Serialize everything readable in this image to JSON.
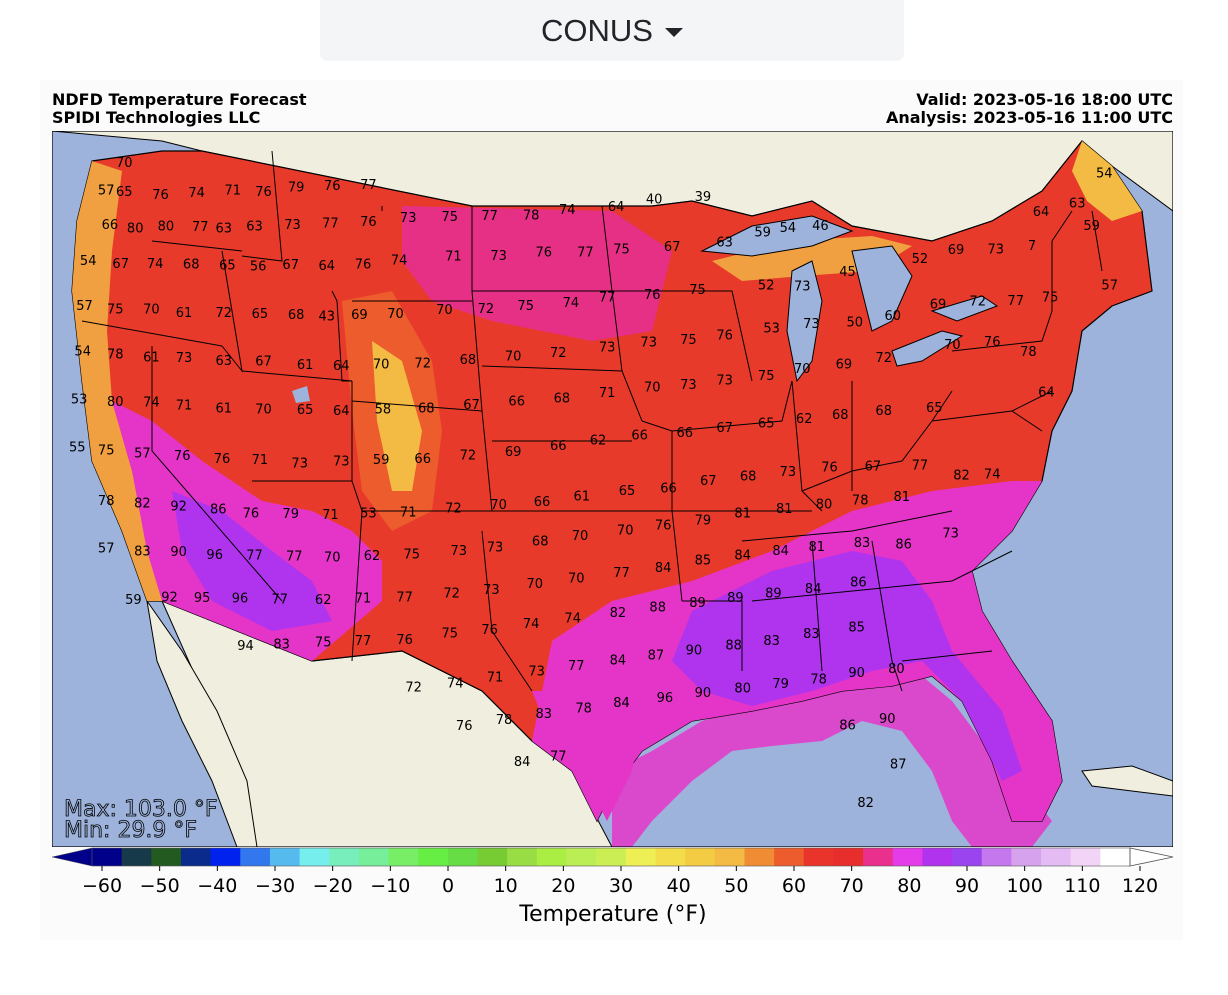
{
  "selector": {
    "value": "CONUS"
  },
  "header": {
    "title": "NDFD Temperature Forecast",
    "company": "SPIDI Technologies LLC",
    "valid": "Valid: 2023-05-16 18:00 UTC",
    "analysis": "Analysis: 2023-05-16 11:00 UTC"
  },
  "stats": {
    "max": "Max: 103.0 °F",
    "min": "Min: 29.9 °F"
  },
  "colorbar": {
    "label": "Temperature (°F)",
    "ticks": [
      -60,
      -50,
      -40,
      -30,
      -20,
      -10,
      0,
      10,
      20,
      30,
      40,
      50,
      60,
      70,
      80,
      90,
      100,
      110,
      120
    ],
    "colors": [
      "#00008b",
      "#173a4a",
      "#225a20",
      "#0a2a8c",
      "#0022ee",
      "#3377ee",
      "#55bbee",
      "#77eeee",
      "#77eebb",
      "#77ee99",
      "#77ee66",
      "#66ee44",
      "#66dd44",
      "#77cc33",
      "#99dd44",
      "#aaee44",
      "#bbee55",
      "#ccee55",
      "#eeee55",
      "#f4dd4a",
      "#f4cc44",
      "#f4bb44",
      "#f08c33",
      "#ec5c2c",
      "#e8342a",
      "#e82d2d",
      "#e8308c",
      "#e33ce8",
      "#b133ee",
      "#9944ee",
      "#c577ee",
      "#d6a2ee",
      "#e4bbf2",
      "#f2d5f6",
      "#ffffff"
    ]
  },
  "colors": {
    "ocean": "#9db3db",
    "land": "#efeedf",
    "lake": "#9db3db",
    "warm": "#e83a2a",
    "hot": "#e535c8",
    "veryhot": "#b033ee",
    "mild": "#f0a040",
    "cool": "#f6c040"
  },
  "station_values": [
    {
      "t": "70",
      "lon": -123.0,
      "lat": 48.9
    },
    {
      "t": "57",
      "lon": -124.0,
      "lat": 47.9
    },
    {
      "t": "65",
      "lon": -123.0,
      "lat": 47.8
    },
    {
      "t": "76",
      "lon": -121.0,
      "lat": 47.6
    },
    {
      "t": "74",
      "lon": -119.0,
      "lat": 47.6
    },
    {
      "t": "71",
      "lon": -117.0,
      "lat": 47.6
    },
    {
      "t": "76",
      "lon": -115.3,
      "lat": 47.5
    },
    {
      "t": "79",
      "lon": -113.5,
      "lat": 47.6
    },
    {
      "t": "76",
      "lon": -111.5,
      "lat": 47.6
    },
    {
      "t": "77",
      "lon": -109.5,
      "lat": 47.6
    },
    {
      "t": "66",
      "lon": -123.8,
      "lat": 46.6
    },
    {
      "t": "80",
      "lon": -122.4,
      "lat": 46.4
    },
    {
      "t": "80",
      "lon": -120.7,
      "lat": 46.4
    },
    {
      "t": "77",
      "lon": -118.8,
      "lat": 46.3
    },
    {
      "t": "63",
      "lon": -117.5,
      "lat": 46.2
    },
    {
      "t": "63",
      "lon": -115.8,
      "lat": 46.2
    },
    {
      "t": "73",
      "lon": -113.7,
      "lat": 46.2
    },
    {
      "t": "77",
      "lon": -111.6,
      "lat": 46.2
    },
    {
      "t": "76",
      "lon": -109.5,
      "lat": 46.2
    },
    {
      "t": "73",
      "lon": -107.3,
      "lat": 46.3
    },
    {
      "t": "75",
      "lon": -105.0,
      "lat": 46.3
    },
    {
      "t": "77",
      "lon": -102.8,
      "lat": 46.3
    },
    {
      "t": "78",
      "lon": -100.5,
      "lat": 46.3
    },
    {
      "t": "74",
      "lon": -98.5,
      "lat": 46.5
    },
    {
      "t": "64",
      "lon": -95.8,
      "lat": 46.6
    },
    {
      "t": "40",
      "lon": -93.7,
      "lat": 46.9
    },
    {
      "t": "39",
      "lon": -91.0,
      "lat": 47.0
    },
    {
      "t": "59",
      "lon": -69.5,
      "lat": 46.5
    },
    {
      "t": "54",
      "lon": -68.8,
      "lat": 48.5
    },
    {
      "t": "64",
      "lon": -72.3,
      "lat": 46.9
    },
    {
      "t": "63",
      "lon": -70.3,
      "lat": 47.3
    },
    {
      "t": "54",
      "lon": -125.0,
      "lat": 45.3
    },
    {
      "t": "67",
      "lon": -123.2,
      "lat": 45.1
    },
    {
      "t": "74",
      "lon": -121.3,
      "lat": 45.0
    },
    {
      "t": "68",
      "lon": -119.3,
      "lat": 44.9
    },
    {
      "t": "65",
      "lon": -117.3,
      "lat": 44.8
    },
    {
      "t": "56",
      "lon": -115.6,
      "lat": 44.7
    },
    {
      "t": "67",
      "lon": -113.8,
      "lat": 44.7
    },
    {
      "t": "64",
      "lon": -111.8,
      "lat": 44.6
    },
    {
      "t": "76",
      "lon": -109.8,
      "lat": 44.6
    },
    {
      "t": "74",
      "lon": -107.8,
      "lat": 44.7
    },
    {
      "t": "71",
      "lon": -104.8,
      "lat": 44.8
    },
    {
      "t": "73",
      "lon": -102.3,
      "lat": 44.8
    },
    {
      "t": "76",
      "lon": -99.8,
      "lat": 44.9
    },
    {
      "t": "77",
      "lon": -97.5,
      "lat": 44.9
    },
    {
      "t": "75",
      "lon": -95.5,
      "lat": 45.0
    },
    {
      "t": "67",
      "lon": -92.7,
      "lat": 45.1
    },
    {
      "t": "63",
      "lon": -89.8,
      "lat": 45.3
    },
    {
      "t": "59",
      "lon": -87.7,
      "lat": 45.7
    },
    {
      "t": "54",
      "lon": -86.3,
      "lat": 45.9
    },
    {
      "t": "46",
      "lon": -84.5,
      "lat": 46.0
    },
    {
      "t": "52",
      "lon": -79.0,
      "lat": 44.9
    },
    {
      "t": "69",
      "lon": -77.0,
      "lat": 45.3
    },
    {
      "t": "73",
      "lon": -74.8,
      "lat": 45.4
    },
    {
      "t": "7",
      "lon": -72.8,
      "lat": 45.6
    },
    {
      "t": "57",
      "lon": -125.2,
      "lat": 43.6
    },
    {
      "t": "75",
      "lon": -123.5,
      "lat": 43.4
    },
    {
      "t": "70",
      "lon": -121.5,
      "lat": 43.3
    },
    {
      "t": "61",
      "lon": -119.7,
      "lat": 43.1
    },
    {
      "t": "72",
      "lon": -117.5,
      "lat": 43.0
    },
    {
      "t": "65",
      "lon": -115.5,
      "lat": 42.9
    },
    {
      "t": "68",
      "lon": -113.5,
      "lat": 42.8
    },
    {
      "t": "43",
      "lon": -111.8,
      "lat": 42.7
    },
    {
      "t": "69",
      "lon": -110.0,
      "lat": 42.7
    },
    {
      "t": "70",
      "lon": -108.0,
      "lat": 42.7
    },
    {
      "t": "70",
      "lon": -105.3,
      "lat": 42.8
    },
    {
      "t": "72",
      "lon": -103.0,
      "lat": 42.8
    },
    {
      "t": "75",
      "lon": -100.8,
      "lat": 42.9
    },
    {
      "t": "74",
      "lon": -98.3,
      "lat": 43.0
    },
    {
      "t": "77",
      "lon": -96.3,
      "lat": 43.2
    },
    {
      "t": "76",
      "lon": -93.8,
      "lat": 43.3
    },
    {
      "t": "75",
      "lon": -91.3,
      "lat": 43.5
    },
    {
      "t": "52",
      "lon": -87.5,
      "lat": 43.7
    },
    {
      "t": "73",
      "lon": -85.5,
      "lat": 43.7
    },
    {
      "t": "45",
      "lon": -83.0,
      "lat": 44.3
    },
    {
      "t": "69",
      "lon": -78.0,
      "lat": 43.2
    },
    {
      "t": "72",
      "lon": -75.8,
      "lat": 43.4
    },
    {
      "t": "77",
      "lon": -73.7,
      "lat": 43.5
    },
    {
      "t": "75",
      "lon": -71.8,
      "lat": 43.7
    },
    {
      "t": "57",
      "lon": -68.5,
      "lat": 44.3
    },
    {
      "t": "54",
      "lon": -125.3,
      "lat": 41.9
    },
    {
      "t": "78",
      "lon": -123.5,
      "lat": 41.7
    },
    {
      "t": "61",
      "lon": -121.5,
      "lat": 41.5
    },
    {
      "t": "73",
      "lon": -119.7,
      "lat": 41.4
    },
    {
      "t": "63",
      "lon": -117.5,
      "lat": 41.2
    },
    {
      "t": "67",
      "lon": -115.3,
      "lat": 41.1
    },
    {
      "t": "61",
      "lon": -113.0,
      "lat": 40.9
    },
    {
      "t": "64",
      "lon": -111.0,
      "lat": 40.8
    },
    {
      "t": "70",
      "lon": -108.8,
      "lat": 40.8
    },
    {
      "t": "72",
      "lon": -106.5,
      "lat": 40.8
    },
    {
      "t": "68",
      "lon": -104.0,
      "lat": 40.9
    },
    {
      "t": "70",
      "lon": -101.5,
      "lat": 41.0
    },
    {
      "t": "72",
      "lon": -99.0,
      "lat": 41.1
    },
    {
      "t": "73",
      "lon": -96.3,
      "lat": 41.3
    },
    {
      "t": "73",
      "lon": -94.0,
      "lat": 41.5
    },
    {
      "t": "75",
      "lon": -91.8,
      "lat": 41.6
    },
    {
      "t": "76",
      "lon": -89.8,
      "lat": 41.8
    },
    {
      "t": "53",
      "lon": -87.2,
      "lat": 42.1
    },
    {
      "t": "73",
      "lon": -85.0,
      "lat": 42.3
    },
    {
      "t": "50",
      "lon": -82.6,
      "lat": 42.4
    },
    {
      "t": "60",
      "lon": -80.5,
      "lat": 42.7
    },
    {
      "t": "70",
      "lon": -77.2,
      "lat": 41.7
    },
    {
      "t": "76",
      "lon": -75.0,
      "lat": 41.9
    },
    {
      "t": "78",
      "lon": -73.0,
      "lat": 41.6
    },
    {
      "t": "53",
      "lon": -125.5,
      "lat": 40.1
    },
    {
      "t": "80",
      "lon": -123.5,
      "lat": 39.9
    },
    {
      "t": "74",
      "lon": -121.5,
      "lat": 39.8
    },
    {
      "t": "71",
      "lon": -119.7,
      "lat": 39.6
    },
    {
      "t": "61",
      "lon": -117.5,
      "lat": 39.4
    },
    {
      "t": "70",
      "lon": -115.3,
      "lat": 39.3
    },
    {
      "t": "65",
      "lon": -113.0,
      "lat": 39.2
    },
    {
      "t": "64",
      "lon": -111.0,
      "lat": 39.1
    },
    {
      "t": "58",
      "lon": -108.7,
      "lat": 39.1
    },
    {
      "t": "68",
      "lon": -106.3,
      "lat": 39.1
    },
    {
      "t": "67",
      "lon": -103.8,
      "lat": 39.2
    },
    {
      "t": "66",
      "lon": -101.3,
      "lat": 39.3
    },
    {
      "t": "68",
      "lon": -98.8,
      "lat": 39.4
    },
    {
      "t": "71",
      "lon": -96.3,
      "lat": 39.6
    },
    {
      "t": "70",
      "lon": -93.8,
      "lat": 39.8
    },
    {
      "t": "73",
      "lon": -91.8,
      "lat": 39.9
    },
    {
      "t": "73",
      "lon": -89.8,
      "lat": 40.1
    },
    {
      "t": "75",
      "lon": -87.5,
      "lat": 40.3
    },
    {
      "t": "70",
      "lon": -85.5,
      "lat": 40.6
    },
    {
      "t": "69",
      "lon": -83.2,
      "lat": 40.8
    },
    {
      "t": "72",
      "lon": -81.0,
      "lat": 41.1
    },
    {
      "t": "64",
      "lon": -72.0,
      "lat": 40.1
    },
    {
      "t": "55",
      "lon": -125.6,
      "lat": 38.3
    },
    {
      "t": "75",
      "lon": -124.0,
      "lat": 38.1
    },
    {
      "t": "57",
      "lon": -122.0,
      "lat": 37.9
    },
    {
      "t": "76",
      "lon": -119.8,
      "lat": 37.7
    },
    {
      "t": "76",
      "lon": -117.6,
      "lat": 37.5
    },
    {
      "t": "71",
      "lon": -115.5,
      "lat": 37.4
    },
    {
      "t": "73",
      "lon": -113.3,
      "lat": 37.2
    },
    {
      "t": "73",
      "lon": -111.0,
      "lat": 37.2
    },
    {
      "t": "59",
      "lon": -108.8,
      "lat": 37.2
    },
    {
      "t": "66",
      "lon": -106.5,
      "lat": 37.2
    },
    {
      "t": "72",
      "lon": -104.0,
      "lat": 37.3
    },
    {
      "t": "69",
      "lon": -101.5,
      "lat": 37.4
    },
    {
      "t": "66",
      "lon": -99.0,
      "lat": 37.6
    },
    {
      "t": "62",
      "lon": -96.8,
      "lat": 37.8
    },
    {
      "t": "66",
      "lon": -94.5,
      "lat": 38.0
    },
    {
      "t": "66",
      "lon": -92.0,
      "lat": 38.1
    },
    {
      "t": "67",
      "lon": -89.8,
      "lat": 38.3
    },
    {
      "t": "65",
      "lon": -87.5,
      "lat": 38.5
    },
    {
      "t": "62",
      "lon": -85.4,
      "lat": 38.7
    },
    {
      "t": "68",
      "lon": -83.4,
      "lat": 38.9
    },
    {
      "t": "68",
      "lon": -81.0,
      "lat": 39.1
    },
    {
      "t": "65",
      "lon": -78.2,
      "lat": 39.3
    },
    {
      "t": "78",
      "lon": -124.0,
      "lat": 36.2
    },
    {
      "t": "82",
      "lon": -122.0,
      "lat": 36.0
    },
    {
      "t": "92",
      "lon": -120.0,
      "lat": 35.8
    },
    {
      "t": "86",
      "lon": -117.8,
      "lat": 35.6
    },
    {
      "t": "76",
      "lon": -116.0,
      "lat": 35.4
    },
    {
      "t": "79",
      "lon": -113.8,
      "lat": 35.3
    },
    {
      "t": "71",
      "lon": -111.6,
      "lat": 35.2
    },
    {
      "t": "53",
      "lon": -109.5,
      "lat": 35.2
    },
    {
      "t": "71",
      "lon": -107.3,
      "lat": 35.2
    },
    {
      "t": "72",
      "lon": -104.8,
      "lat": 35.3
    },
    {
      "t": "70",
      "lon": -102.3,
      "lat": 35.4
    },
    {
      "t": "66",
      "lon": -99.9,
      "lat": 35.5
    },
    {
      "t": "61",
      "lon": -97.7,
      "lat": 35.7
    },
    {
      "t": "65",
      "lon": -95.2,
      "lat": 35.9
    },
    {
      "t": "66",
      "lon": -92.9,
      "lat": 36.0
    },
    {
      "t": "67",
      "lon": -90.7,
      "lat": 36.3
    },
    {
      "t": "68",
      "lon": -88.5,
      "lat": 36.5
    },
    {
      "t": "73",
      "lon": -86.3,
      "lat": 36.7
    },
    {
      "t": "76",
      "lon": -84.0,
      "lat": 36.9
    },
    {
      "t": "67",
      "lon": -81.6,
      "lat": 37.0
    },
    {
      "t": "77",
      "lon": -79.0,
      "lat": 37.1
    },
    {
      "t": "82",
      "lon": -76.7,
      "lat": 36.8
    },
    {
      "t": "74",
      "lon": -75.0,
      "lat": 36.9
    },
    {
      "t": "57",
      "lon": -124.0,
      "lat": 34.4
    },
    {
      "t": "83",
      "lon": -122.0,
      "lat": 34.2
    },
    {
      "t": "90",
      "lon": -120.0,
      "lat": 34.1
    },
    {
      "t": "96",
      "lon": -118.0,
      "lat": 33.9
    },
    {
      "t": "77",
      "lon": -115.8,
      "lat": 33.8
    },
    {
      "t": "77",
      "lon": -113.6,
      "lat": 33.7
    },
    {
      "t": "70",
      "lon": -111.5,
      "lat": 33.6
    },
    {
      "t": "62",
      "lon": -109.3,
      "lat": 33.6
    },
    {
      "t": "75",
      "lon": -107.1,
      "lat": 33.6
    },
    {
      "t": "73",
      "lon": -104.5,
      "lat": 33.7
    },
    {
      "t": "73",
      "lon": -102.5,
      "lat": 33.8
    },
    {
      "t": "68",
      "lon": -100.0,
      "lat": 34.0
    },
    {
      "t": "70",
      "lon": -97.8,
      "lat": 34.2
    },
    {
      "t": "70",
      "lon": -95.3,
      "lat": 34.4
    },
    {
      "t": "76",
      "lon": -93.2,
      "lat": 34.6
    },
    {
      "t": "79",
      "lon": -91.0,
      "lat": 34.8
    },
    {
      "t": "81",
      "lon": -88.8,
      "lat": 35.1
    },
    {
      "t": "81",
      "lon": -86.5,
      "lat": 35.3
    },
    {
      "t": "80",
      "lon": -84.3,
      "lat": 35.5
    },
    {
      "t": "78",
      "lon": -82.3,
      "lat": 35.7
    },
    {
      "t": "81",
      "lon": -80.0,
      "lat": 35.9
    },
    {
      "t": "73",
      "lon": -77.3,
      "lat": 34.6
    },
    {
      "t": "59",
      "lon": -122.5,
      "lat": 32.4
    },
    {
      "t": "92",
      "lon": -120.5,
      "lat": 32.4
    },
    {
      "t": "95",
      "lon": -118.7,
      "lat": 32.3
    },
    {
      "t": "96",
      "lon": -116.6,
      "lat": 32.2
    },
    {
      "t": "77",
      "lon": -114.4,
      "lat": 32.1
    },
    {
      "t": "62",
      "lon": -112.0,
      "lat": 32.0
    },
    {
      "t": "71",
      "lon": -109.8,
      "lat": 32.0
    },
    {
      "t": "77",
      "lon": -107.5,
      "lat": 32.0
    },
    {
      "t": "72",
      "lon": -104.9,
      "lat": 32.1
    },
    {
      "t": "73",
      "lon": -102.7,
      "lat": 32.2
    },
    {
      "t": "70",
      "lon": -100.3,
      "lat": 32.4
    },
    {
      "t": "70",
      "lon": -98.0,
      "lat": 32.6
    },
    {
      "t": "77",
      "lon": -95.5,
      "lat": 32.8
    },
    {
      "t": "84",
      "lon": -93.2,
      "lat": 33.0
    },
    {
      "t": "85",
      "lon": -91.0,
      "lat": 33.3
    },
    {
      "t": "84",
      "lon": -88.8,
      "lat": 33.5
    },
    {
      "t": "84",
      "lon": -86.7,
      "lat": 33.7
    },
    {
      "t": "81",
      "lon": -84.7,
      "lat": 33.9
    },
    {
      "t": "83",
      "lon": -82.2,
      "lat": 34.1
    },
    {
      "t": "86",
      "lon": -79.9,
      "lat": 34.1
    },
    {
      "t": "94",
      "lon": -116.3,
      "lat": 30.4
    },
    {
      "t": "83",
      "lon": -114.3,
      "lat": 30.4
    },
    {
      "t": "75",
      "lon": -112.0,
      "lat": 30.4
    },
    {
      "t": "77",
      "lon": -109.8,
      "lat": 30.4
    },
    {
      "t": "76",
      "lon": -107.5,
      "lat": 30.4
    },
    {
      "t": "75",
      "lon": -105.0,
      "lat": 30.6
    },
    {
      "t": "76",
      "lon": -102.8,
      "lat": 30.7
    },
    {
      "t": "74",
      "lon": -100.5,
      "lat": 30.9
    },
    {
      "t": "74",
      "lon": -98.2,
      "lat": 31.1
    },
    {
      "t": "82",
      "lon": -95.7,
      "lat": 31.3
    },
    {
      "t": "88",
      "lon": -93.5,
      "lat": 31.5
    },
    {
      "t": "89",
      "lon": -91.3,
      "lat": 31.7
    },
    {
      "t": "89",
      "lon": -89.2,
      "lat": 31.9
    },
    {
      "t": "89",
      "lon": -87.1,
      "lat": 32.1
    },
    {
      "t": "84",
      "lon": -84.9,
      "lat": 32.3
    },
    {
      "t": "86",
      "lon": -82.4,
      "lat": 32.6
    },
    {
      "t": "72",
      "lon": -107.0,
      "lat": 28.6
    },
    {
      "t": "74",
      "lon": -104.7,
      "lat": 28.7
    },
    {
      "t": "71",
      "lon": -102.5,
      "lat": 28.9
    },
    {
      "t": "73",
      "lon": -100.2,
      "lat": 29.1
    },
    {
      "t": "77",
      "lon": -98.0,
      "lat": 29.3
    },
    {
      "t": "84",
      "lon": -95.7,
      "lat": 29.5
    },
    {
      "t": "87",
      "lon": -93.6,
      "lat": 29.7
    },
    {
      "t": "90",
      "lon": -91.5,
      "lat": 29.9
    },
    {
      "t": "88",
      "lon": -89.3,
      "lat": 30.1
    },
    {
      "t": "83",
      "lon": -87.2,
      "lat": 30.3
    },
    {
      "t": "83",
      "lon": -85.0,
      "lat": 30.6
    },
    {
      "t": "85",
      "lon": -82.5,
      "lat": 30.9
    },
    {
      "t": "76",
      "lon": -104.2,
      "lat": 27.1
    },
    {
      "t": "78",
      "lon": -102.0,
      "lat": 27.3
    },
    {
      "t": "83",
      "lon": -99.8,
      "lat": 27.5
    },
    {
      "t": "78",
      "lon": -97.6,
      "lat": 27.7
    },
    {
      "t": "84",
      "lon": -95.5,
      "lat": 27.9
    },
    {
      "t": "96",
      "lon": -93.1,
      "lat": 28.1
    },
    {
      "t": "90",
      "lon": -91.0,
      "lat": 28.3
    },
    {
      "t": "80",
      "lon": -88.8,
      "lat": 28.5
    },
    {
      "t": "79",
      "lon": -86.7,
      "lat": 28.7
    },
    {
      "t": "78",
      "lon": -84.6,
      "lat": 28.9
    },
    {
      "t": "90",
      "lon": -82.5,
      "lat": 29.2
    },
    {
      "t": "80",
      "lon": -80.3,
      "lat": 29.4
    },
    {
      "t": "84",
      "lon": -101.0,
      "lat": 25.7
    },
    {
      "t": "77",
      "lon": -99.0,
      "lat": 25.9
    },
    {
      "t": "86",
      "lon": -83.0,
      "lat": 27.2
    },
    {
      "t": "90",
      "lon": -80.8,
      "lat": 27.5
    },
    {
      "t": "87",
      "lon": -80.2,
      "lat": 25.8
    },
    {
      "t": "82",
      "lon": -82.0,
      "lat": 24.3
    }
  ]
}
